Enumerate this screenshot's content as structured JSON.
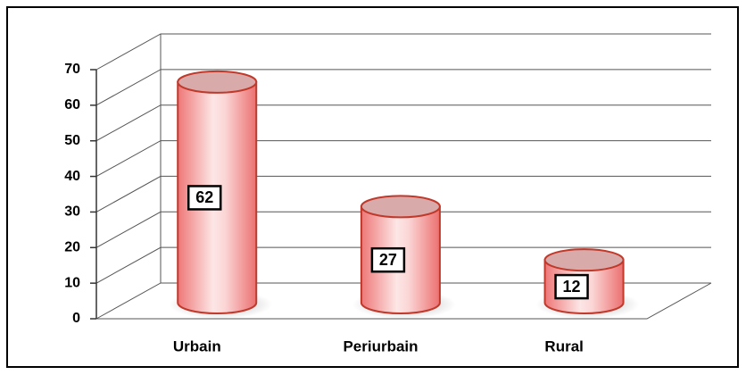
{
  "chart_data": {
    "type": "cylinder",
    "categories": [
      "Urbain",
      "Periurbain",
      "Rural"
    ],
    "values": [
      62,
      27,
      12
    ],
    "color": "#f08585",
    "ylim": [
      0,
      70
    ],
    "yticks": [
      0,
      10,
      20,
      30,
      40,
      50,
      60,
      70
    ],
    "grid": true
  }
}
